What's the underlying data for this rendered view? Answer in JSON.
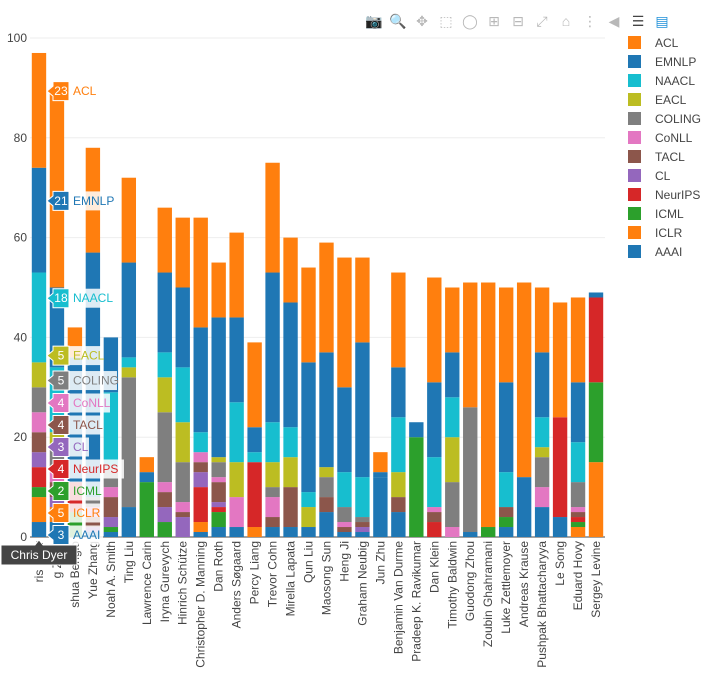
{
  "modebar": {
    "icons": [
      "camera-icon",
      "zoom-icon",
      "pan-icon",
      "box-select-icon",
      "lasso-icon",
      "zoom-in-icon",
      "zoom-out-icon",
      "autoscale-icon",
      "home-icon",
      "spike-lines-icon",
      "hover-closest-icon",
      "hover-compare-icon",
      "plotly-logo-icon"
    ]
  },
  "chart_data": {
    "type": "bar",
    "barmode": "stack",
    "ylim": [
      0,
      100
    ],
    "yticks": [
      0,
      20,
      40,
      60,
      80,
      100
    ],
    "grid": true,
    "legend_position": "right",
    "categories": [
      "Chris Dyer",
      "Ming Zhou",
      "Joshua Bengio",
      "Yue Zhang",
      "Noah A. Smith",
      "Ting Liu",
      "Lawrence Carin",
      "Iryna Gurevych",
      "Hinrich Schütze",
      "Christopher D. Manning",
      "Dan Roth",
      "Anders Søgaard",
      "Percy Liang",
      "Trevor Cohn",
      "Mirella Lapata",
      "Qun Liu",
      "Maosong Sun",
      "Heng Ji",
      "Graham Neubig",
      "Jun Zhu",
      "Benjamin Van Durme",
      "Pradeep K. Ravikumar",
      "Dan Klein",
      "Timothy Baldwin",
      "Guodong Zhou",
      "Zoubin Ghahramani",
      "Luke Zettlemoyer",
      "Andreas Krause",
      "Pushpak Bhattacharyya",
      "Le Song",
      "Eduard Hovy",
      "Sergey Levine"
    ],
    "xtick_labels": [
      "ris Dyer",
      "g Zhou",
      "shua Bengio",
      "Yue Zhang",
      "Noah A. Smith",
      "Ting Liu",
      "Lawrence Carin",
      "Iryna Gurevych",
      "Hinrich Schütze",
      "Christopher D. Manning",
      "Dan Roth",
      "Anders Søgaard",
      "Percy Liang",
      "Trevor Cohn",
      "Mirella Lapata",
      "Qun Liu",
      "Maosong Sun",
      "Heng Ji",
      "Graham Neubig",
      "Jun Zhu",
      "Benjamin Van Durme",
      "Pradeep K. Ravikumar",
      "Dan Klein",
      "Timothy Baldwin",
      "Guodong Zhou",
      "Zoubin Ghahramani",
      "Luke Zettlemoyer",
      "Andreas Krause",
      "Pushpak Bhattacharyya",
      "Le Song",
      "Eduard Hovy",
      "Sergey Levine"
    ],
    "series": [
      {
        "name": "AAAI",
        "color": "#1f77b4",
        "values": [
          3,
          3,
          0,
          1,
          1,
          6,
          0,
          0,
          0,
          1,
          2,
          2,
          0,
          2,
          2,
          2,
          5,
          1,
          1,
          12,
          5,
          0,
          0,
          0,
          1,
          0,
          2,
          12,
          6,
          4,
          0,
          0
        ]
      },
      {
        "name": "ICLR",
        "color": "#ff7f0e",
        "values": [
          5,
          3,
          0,
          0,
          0,
          0,
          0,
          0,
          0,
          2,
          0,
          0,
          2,
          0,
          0,
          0,
          0,
          0,
          0,
          0,
          0,
          0,
          0,
          0,
          0,
          0,
          0,
          0,
          0,
          0,
          2,
          15
        ]
      },
      {
        "name": "ICML",
        "color": "#2ca02c",
        "values": [
          2,
          0,
          5,
          0,
          1,
          0,
          11,
          3,
          0,
          0,
          3,
          0,
          0,
          0,
          0,
          0,
          0,
          0,
          0,
          0,
          0,
          20,
          0,
          0,
          0,
          2,
          2,
          0,
          0,
          0,
          1,
          16
        ]
      },
      {
        "name": "NeurIPS",
        "color": "#d62728",
        "values": [
          4,
          0,
          6,
          0,
          0,
          0,
          0,
          0,
          0,
          7,
          1,
          0,
          13,
          0,
          0,
          0,
          0,
          0,
          0,
          0,
          0,
          0,
          3,
          0,
          0,
          0,
          0,
          0,
          0,
          20,
          1,
          17
        ]
      },
      {
        "name": "CL",
        "color": "#9467bd",
        "values": [
          3,
          2,
          0,
          1,
          2,
          0,
          0,
          3,
          4,
          3,
          1,
          0,
          0,
          0,
          0,
          0,
          0,
          0,
          1,
          0,
          0,
          0,
          0,
          0,
          0,
          0,
          0,
          0,
          0,
          0,
          0,
          0
        ]
      },
      {
        "name": "TACL",
        "color": "#8c564b",
        "values": [
          4,
          3,
          0,
          2,
          4,
          0,
          0,
          3,
          1,
          2,
          4,
          0,
          0,
          2,
          8,
          0,
          3,
          1,
          1,
          0,
          3,
          0,
          2,
          0,
          0,
          0,
          2,
          0,
          0,
          0,
          1,
          0
        ]
      },
      {
        "name": "CoNLL",
        "color": "#e377c2",
        "values": [
          4,
          2,
          0,
          2,
          2,
          0,
          0,
          2,
          2,
          2,
          1,
          6,
          0,
          4,
          0,
          0,
          0,
          1,
          0,
          0,
          0,
          0,
          1,
          2,
          0,
          0,
          0,
          0,
          4,
          0,
          1,
          0
        ]
      },
      {
        "name": "COLING",
        "color": "#7f7f7f",
        "values": [
          5,
          5,
          0,
          2,
          4,
          26,
          0,
          14,
          8,
          0,
          3,
          0,
          0,
          2,
          0,
          0,
          4,
          3,
          1,
          0,
          0,
          0,
          0,
          9,
          25,
          0,
          0,
          0,
          6,
          0,
          5,
          0
        ]
      },
      {
        "name": "EACL",
        "color": "#bcbd22",
        "values": [
          5,
          3,
          0,
          0,
          0,
          2,
          0,
          7,
          8,
          0,
          1,
          7,
          0,
          5,
          6,
          4,
          2,
          0,
          0,
          0,
          5,
          0,
          0,
          9,
          0,
          0,
          0,
          0,
          2,
          0,
          0,
          0
        ]
      },
      {
        "name": "NAACL",
        "color": "#17becf",
        "values": [
          18,
          13,
          0,
          0,
          15,
          2,
          0,
          5,
          11,
          4,
          0,
          12,
          2,
          8,
          6,
          3,
          0,
          7,
          8,
          0,
          11,
          0,
          10,
          8,
          0,
          0,
          7,
          0,
          6,
          0,
          8,
          0
        ]
      },
      {
        "name": "EMNLP",
        "color": "#1f77b4",
        "values": [
          21,
          16,
          25,
          49,
          11,
          19,
          2,
          16,
          16,
          21,
          28,
          17,
          5,
          30,
          25,
          26,
          23,
          17,
          27,
          1,
          10,
          3,
          15,
          9,
          0,
          0,
          18,
          0,
          13,
          0,
          12,
          1
        ]
      },
      {
        "name": "ACL",
        "color": "#ff7f0e",
        "values": [
          23,
          40,
          6,
          21,
          0,
          17,
          3,
          13,
          14,
          22,
          11,
          17,
          17,
          22,
          13,
          19,
          22,
          26,
          17,
          4,
          19,
          0,
          21,
          13,
          25,
          49,
          19,
          39,
          13,
          23,
          17,
          0
        ]
      }
    ],
    "hover": {
      "category": "Chris Dyer",
      "label": "Chris Dyer",
      "labels": [
        {
          "value": "23",
          "name": "ACL"
        },
        {
          "value": "21",
          "name": "EMNLP"
        },
        {
          "value": "18",
          "name": "NAACL"
        },
        {
          "value": "5",
          "name": "EACL"
        },
        {
          "value": "5",
          "name": "COLING"
        },
        {
          "value": "4",
          "name": "CoNLL"
        },
        {
          "value": "4",
          "name": "TACL"
        },
        {
          "value": "3",
          "name": "CL"
        },
        {
          "value": "4",
          "name": "NeurIPS"
        },
        {
          "value": "2",
          "name": "ICML"
        },
        {
          "value": "5",
          "name": "ICLR"
        },
        {
          "value": "3",
          "name": "AAAI"
        }
      ]
    }
  },
  "legend": {
    "items": [
      {
        "label": "ACL",
        "color": "#ff7f0e"
      },
      {
        "label": "EMNLP",
        "color": "#1f77b4"
      },
      {
        "label": "NAACL",
        "color": "#17becf"
      },
      {
        "label": "EACL",
        "color": "#bcbd22"
      },
      {
        "label": "COLING",
        "color": "#7f7f7f"
      },
      {
        "label": "CoNLL",
        "color": "#e377c2"
      },
      {
        "label": "TACL",
        "color": "#8c564b"
      },
      {
        "label": "CL",
        "color": "#9467bd"
      },
      {
        "label": "NeurIPS",
        "color": "#d62728"
      },
      {
        "label": "ICML",
        "color": "#2ca02c"
      },
      {
        "label": "ICLR",
        "color": "#ff7f0e"
      },
      {
        "label": "AAAI",
        "color": "#1f77b4"
      }
    ]
  }
}
